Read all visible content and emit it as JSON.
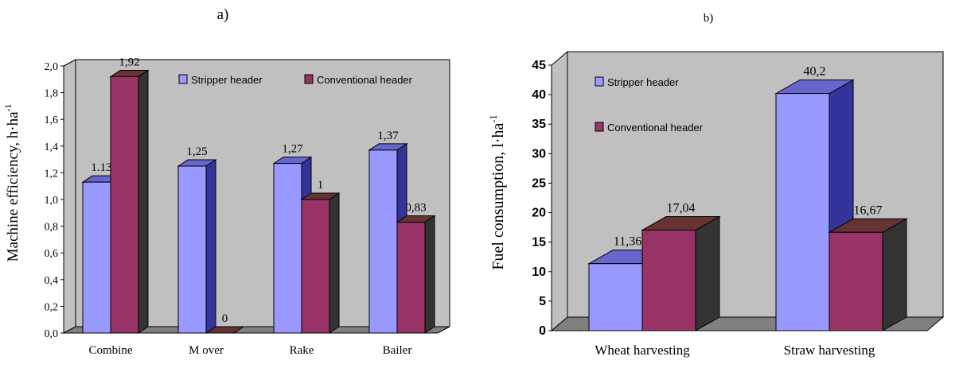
{
  "chart_data": [
    {
      "type": "bar",
      "panel_label": "a)",
      "title": "",
      "xlabel": "",
      "ylabel": "Machine efficiency, h·ha",
      "ylabel_sup": "-1",
      "ylim": [
        0,
        2.0
      ],
      "yticks": [
        "0,0",
        "0,2",
        "0,4",
        "0,6",
        "0,8",
        "1,0",
        "1,2",
        "1,4",
        "1,6",
        "1,8",
        "2,0"
      ],
      "categories": [
        "Combine",
        "M over",
        "Rake",
        "Bailer"
      ],
      "series": [
        {
          "name": "Stripper header",
          "values": [
            1.13,
            1.25,
            1.27,
            1.37
          ],
          "labels": [
            "1.13",
            "1,25",
            "1,27",
            "1,37"
          ]
        },
        {
          "name": "Conventional header",
          "values": [
            1.92,
            0,
            1.0,
            0.83
          ],
          "labels": [
            "1,92",
            "0",
            "1",
            "0,83"
          ]
        }
      ],
      "legend_position": "top-right",
      "grid": false,
      "three_d": true
    },
    {
      "type": "bar",
      "panel_label": "b)",
      "title": "",
      "xlabel": "",
      "ylabel": "Fuel consumption, l·ha",
      "ylabel_sup": "-1",
      "ylim": [
        0,
        45
      ],
      "yticks": [
        "0",
        "5",
        "10",
        "15",
        "20",
        "25",
        "30",
        "35",
        "40",
        "45"
      ],
      "categories": [
        "Wheat harvesting",
        "Straw harvesting"
      ],
      "series": [
        {
          "name": "Stripper header",
          "values": [
            11.36,
            40.2
          ],
          "labels": [
            "11,36",
            "40,2"
          ]
        },
        {
          "name": "Conventional header",
          "values": [
            17.04,
            16.67
          ],
          "labels": [
            "17,04",
            "16,67"
          ]
        }
      ],
      "legend_position": "top-left",
      "grid": false,
      "three_d": true
    }
  ],
  "colors": {
    "stripper_front": "#9999ff",
    "stripper_side": "#333399",
    "stripper_top": "#6666cc",
    "conventional_front": "#993366",
    "conventional_side": "#333333",
    "conventional_top": "#663333",
    "wall": "#c0c0c0",
    "floor": "#808080"
  }
}
